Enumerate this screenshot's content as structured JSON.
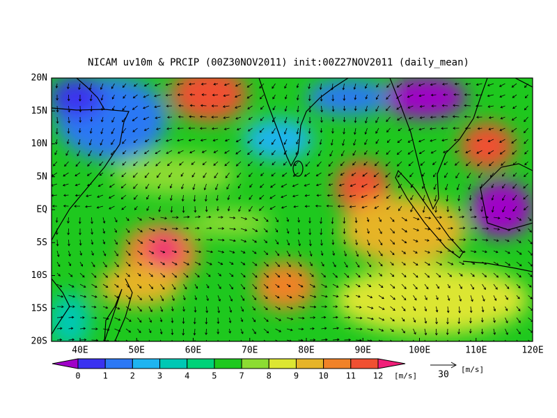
{
  "title": "NICAM uv10m & PRCIP (00Z30NOV2011) init:00Z27NOV2011 (daily_mean)",
  "lon_labels": [
    "40E",
    "50E",
    "60E",
    "70E",
    "80E",
    "90E",
    "100E",
    "110E",
    "120E"
  ],
  "lat_labels": [
    "20N",
    "15N",
    "10N",
    "5N",
    "EQ",
    "5S",
    "10S",
    "15S",
    "20S"
  ],
  "colorbar": {
    "levels": [
      0,
      1,
      2,
      3,
      4,
      5,
      7,
      8,
      9,
      10,
      11,
      12
    ],
    "colors": [
      "#a000c8",
      "#3a32f0",
      "#2c78f5",
      "#1eb4f0",
      "#00c8b4",
      "#00d278",
      "#1ec81e",
      "#8cdc32",
      "#dce632",
      "#e6b428",
      "#f08228",
      "#f05032",
      "#f01e78"
    ],
    "unit": "[m/s]"
  },
  "reference_vector": {
    "value": 30,
    "unit": "[m/s]"
  }
}
